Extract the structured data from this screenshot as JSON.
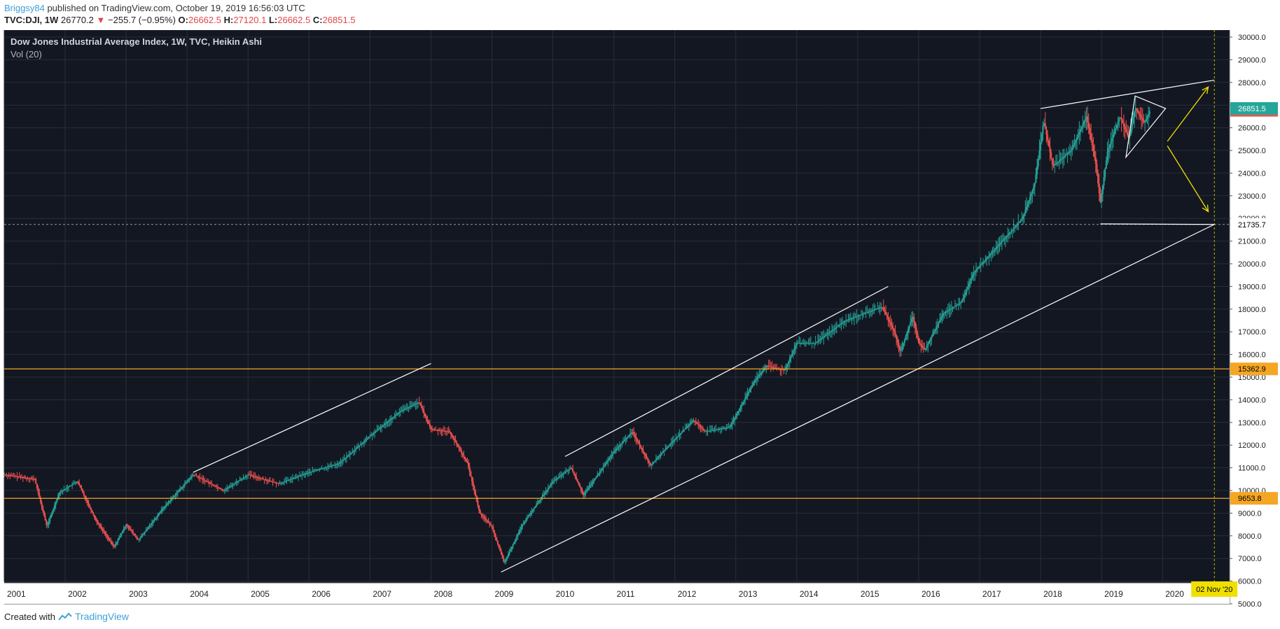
{
  "header": {
    "author": "Briggsy84",
    "published_text": "published on TradingView.com, October 19, 2019 16:56:03 UTC"
  },
  "quote": {
    "symbol": "TVC:DJI, 1W",
    "last": "26770.2",
    "arrow": "▼",
    "change": "−255.7 (−0.95%)",
    "o_label": "O:",
    "o_value": "26662.5",
    "h_label": "H:",
    "h_value": "27120.1",
    "l_label": "L:",
    "l_value": "26662.5",
    "c_label": "C:",
    "c_value": "26851.5"
  },
  "footer": {
    "created_with": "Created with",
    "brand": "TradingView"
  },
  "colors": {
    "background": "#131722",
    "grid": "#2a2e39",
    "up": "#26a69a",
    "down": "#ef5350",
    "horizontal_levels": "#f5a623",
    "arrows": "#f0e000",
    "date_marker": "#f0e000"
  },
  "chart_data": {
    "type": "candlestick",
    "title": "Dow Jones Industrial Average Index, 1W, TVC, Heikin Ashi",
    "subtitle": "Vol (20)",
    "x_range": [
      2001.0,
      2021.1
    ],
    "ylim": [
      5000,
      30000
    ],
    "y_ticks": [
      5000,
      6000,
      7000,
      8000,
      9000,
      10000,
      11000,
      12000,
      13000,
      14000,
      15000,
      16000,
      17000,
      18000,
      19000,
      20000,
      21000,
      22000,
      23000,
      24000,
      25000,
      26000,
      27000,
      28000,
      29000,
      30000
    ],
    "y_tick_labels": [
      "5000.0",
      "6000.0",
      "7000.0",
      "8000.0",
      "9000.0",
      "10000.0",
      "11000.0",
      "12000.0",
      "13000.0",
      "14000.0",
      "15000.0",
      "16000.0",
      "17000.0",
      "18000.0",
      "19000.0",
      "20000.0",
      "21000.0",
      "22000.0",
      "23000.0",
      "24000.0",
      "25000.0",
      "26000.0",
      "27000.0",
      "28000.0",
      "29000.0",
      "30000.0"
    ],
    "x_ticks": [
      2001,
      2002,
      2003,
      2004,
      2005,
      2006,
      2007,
      2008,
      2009,
      2010,
      2011,
      2012,
      2013,
      2014,
      2015,
      2016,
      2017,
      2018,
      2019,
      2020
    ],
    "x_tick_labels": [
      "2001",
      "2002",
      "2003",
      "2004",
      "2005",
      "2006",
      "2007",
      "2008",
      "2009",
      "2010",
      "2011",
      "2012",
      "2013",
      "2014",
      "2015",
      "2016",
      "2017",
      "2018",
      "2019",
      "2020"
    ],
    "price_path": [
      [
        2001.0,
        10700
      ],
      [
        2001.5,
        10500
      ],
      [
        2001.7,
        8400
      ],
      [
        2001.9,
        9900
      ],
      [
        2002.2,
        10400
      ],
      [
        2002.5,
        8700
      ],
      [
        2002.8,
        7500
      ],
      [
        2003.0,
        8500
      ],
      [
        2003.2,
        7800
      ],
      [
        2003.6,
        9200
      ],
      [
        2004.0,
        10400
      ],
      [
        2004.1,
        10700
      ],
      [
        2004.6,
        10000
      ],
      [
        2005.0,
        10700
      ],
      [
        2005.5,
        10300
      ],
      [
        2006.0,
        10800
      ],
      [
        2006.5,
        11200
      ],
      [
        2007.0,
        12400
      ],
      [
        2007.5,
        13500
      ],
      [
        2007.8,
        13900
      ],
      [
        2008.0,
        12700
      ],
      [
        2008.3,
        12600
      ],
      [
        2008.6,
        11200
      ],
      [
        2008.8,
        9000
      ],
      [
        2009.0,
        8400
      ],
      [
        2009.2,
        6800
      ],
      [
        2009.5,
        8500
      ],
      [
        2010.0,
        10400
      ],
      [
        2010.3,
        11000
      ],
      [
        2010.5,
        9800
      ],
      [
        2011.0,
        11700
      ],
      [
        2011.3,
        12600
      ],
      [
        2011.6,
        11100
      ],
      [
        2011.8,
        11700
      ],
      [
        2012.3,
        13100
      ],
      [
        2012.5,
        12600
      ],
      [
        2012.9,
        12800
      ],
      [
        2013.3,
        14800
      ],
      [
        2013.5,
        15500
      ],
      [
        2013.8,
        15300
      ],
      [
        2014.0,
        16500
      ],
      [
        2014.3,
        16500
      ],
      [
        2014.8,
        17500
      ],
      [
        2015.1,
        17800
      ],
      [
        2015.4,
        18100
      ],
      [
        2015.6,
        17000
      ],
      [
        2015.7,
        16100
      ],
      [
        2015.9,
        17700
      ],
      [
        2016.0,
        16500
      ],
      [
        2016.1,
        16200
      ],
      [
        2016.4,
        17800
      ],
      [
        2016.7,
        18300
      ],
      [
        2016.9,
        19600
      ],
      [
        2017.3,
        20800
      ],
      [
        2017.7,
        22000
      ],
      [
        2017.9,
        23500
      ],
      [
        2018.05,
        26300
      ],
      [
        2018.2,
        24300
      ],
      [
        2018.5,
        25000
      ],
      [
        2018.75,
        26500
      ],
      [
        2018.9,
        24500
      ],
      [
        2018.98,
        22700
      ],
      [
        2019.1,
        25000
      ],
      [
        2019.3,
        26500
      ],
      [
        2019.45,
        25500
      ],
      [
        2019.55,
        26900
      ],
      [
        2019.7,
        26200
      ],
      [
        2019.8,
        26800
      ]
    ],
    "horizontal_levels": [
      {
        "value": 15362.9,
        "label": "15362.9"
      },
      {
        "value": 9653.8,
        "label": "9653.8"
      }
    ],
    "price_labels": [
      {
        "value": 26851.5,
        "label": "26851.5"
      },
      {
        "value": 26770.2,
        "label": "26770.2"
      },
      {
        "value": 21735.7,
        "label": "21735.7"
      }
    ],
    "trendlines": [
      {
        "x1": 2004.1,
        "y1": 10800,
        "x2": 2008.0,
        "y2": 15600
      },
      {
        "x1": 2010.2,
        "y1": 11500,
        "x2": 2015.5,
        "y2": 19000
      },
      {
        "x1": 2009.15,
        "y1": 6400,
        "x2": 2020.85,
        "y2": 21735.7
      },
      {
        "x1": 2018.0,
        "y1": 26850,
        "x2": 2020.85,
        "y2": 28100
      },
      {
        "x1": 2018.98,
        "y1": 21760,
        "x2": 2020.85,
        "y2": 21735.7
      }
    ],
    "triangle": [
      [
        2019.55,
        27400
      ],
      [
        2020.05,
        26850
      ],
      [
        2019.4,
        24700
      ]
    ],
    "arrows": [
      {
        "x1": 2020.08,
        "y1": 25400,
        "x2": 2020.75,
        "y2": 27800
      },
      {
        "x1": 2020.08,
        "y1": 25200,
        "x2": 2020.75,
        "y2": 22300
      }
    ],
    "date_marker": {
      "x": 2020.85,
      "label": "02 Nov '20"
    }
  }
}
